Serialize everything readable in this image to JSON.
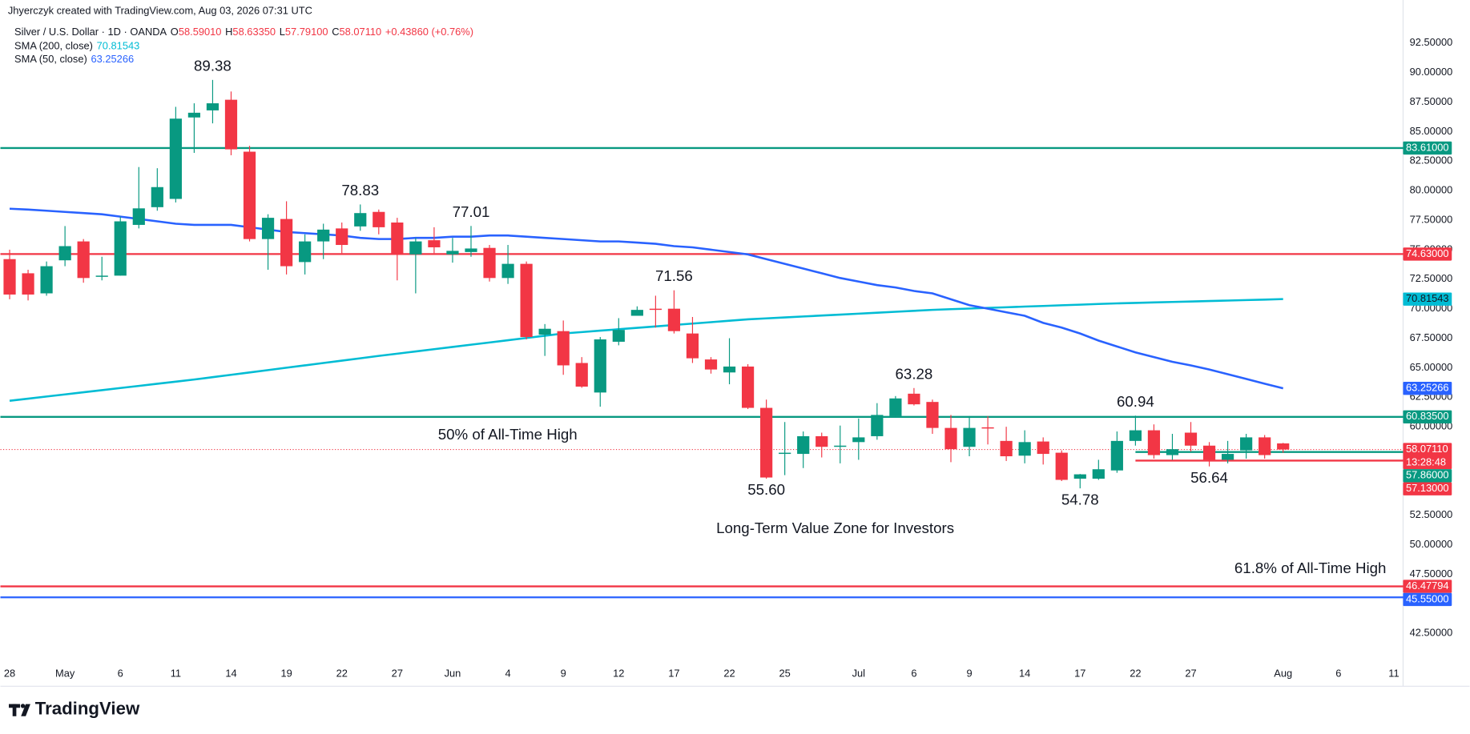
{
  "header": {
    "credit": "Jhyerczyk created with TradingView.com, Aug 03, 2026 07:31 UTC",
    "symbol": "Silver / U.S. Dollar · 1D · OANDA",
    "legend": [
      {
        "key": "O",
        "label": "58.59010"
      },
      {
        "key": "H",
        "label": "58.63350"
      },
      {
        "key": "L",
        "label": "57.79100"
      },
      {
        "key": "C",
        "label": "58.07110"
      }
    ],
    "change": "+0.43860 (+0.76%)"
  },
  "brand": "TradingView",
  "chart_data": {
    "type": "candlestick",
    "categories": [
      "28",
      null,
      null,
      "May",
      null,
      null,
      "6",
      null,
      null,
      "11",
      null,
      null,
      "14",
      null,
      null,
      "19",
      null,
      null,
      "22",
      null,
      null,
      "27",
      null,
      null,
      "Jun",
      null,
      null,
      "4",
      null,
      null,
      "9",
      null,
      null,
      "12",
      null,
      null,
      "17",
      null,
      null,
      "22",
      null,
      null,
      "25",
      null,
      null,
      null,
      "Jul",
      null,
      null,
      "6",
      null,
      null,
      "9",
      null,
      null,
      "14",
      null,
      null,
      "17",
      null,
      null,
      "22",
      null,
      null,
      "27",
      null,
      null,
      null,
      null,
      "Aug",
      null,
      null,
      "6",
      null,
      null,
      "11"
    ],
    "open": [
      74.2,
      73.0,
      71.3,
      74.1,
      75.7,
      72.7,
      72.8,
      77.1,
      78.6,
      79.3,
      86.2,
      86.8,
      87.7,
      83.3,
      75.9,
      77.6,
      73.95,
      75.7,
      76.8,
      76.97,
      78.2,
      77.3,
      74.6,
      75.8,
      74.6,
      74.8,
      75.15,
      72.6,
      73.8,
      67.8,
      68.1,
      65.4,
      62.9,
      67.2,
      69.4,
      70.0,
      70.0,
      67.9,
      65.7,
      64.6,
      65.1,
      61.6,
      57.7,
      57.7,
      59.2,
      58.3,
      58.7,
      59.2,
      60.9,
      62.8,
      62.1,
      59.9,
      58.3,
      59.95,
      58.8,
      57.55,
      58.75,
      57.8,
      55.6,
      55.6,
      56.3,
      58.8,
      59.7,
      57.6,
      59.5,
      58.4,
      57.2,
      58.0,
      59.1,
      58.5901,
      null,
      null,
      null,
      null,
      null,
      null
    ],
    "high": [
      75.0,
      73.3,
      74.0,
      77.0,
      75.9,
      74.4,
      77.8,
      82.0,
      81.9,
      87.1,
      87.4,
      89.38,
      88.4,
      83.8,
      78.0,
      79.1,
      76.3,
      77.2,
      77.3,
      78.83,
      78.4,
      77.7,
      76.0,
      76.9,
      76.0,
      77.01,
      75.4,
      75.4,
      74.0,
      68.7,
      69.0,
      65.9,
      67.6,
      69.2,
      70.2,
      71.1,
      71.56,
      69.3,
      65.9,
      67.5,
      65.3,
      62.3,
      60.4,
      59.6,
      59.5,
      60.1,
      60.7,
      62.0,
      62.6,
      63.28,
      62.3,
      61.0,
      60.9,
      60.9,
      60.0,
      59.7,
      59.1,
      58.0,
      56.0,
      57.2,
      59.6,
      60.94,
      60.2,
      59.4,
      60.4,
      58.7,
      58.8,
      59.4,
      59.3,
      58.6335,
      null,
      null,
      null,
      null,
      null,
      null
    ],
    "low": [
      70.8,
      70.7,
      71.1,
      73.6,
      72.2,
      72.4,
      72.8,
      76.8,
      78.3,
      79.0,
      83.2,
      85.7,
      83.0,
      75.7,
      73.3,
      72.9,
      72.9,
      74.2,
      74.7,
      76.6,
      76.3,
      72.4,
      71.3,
      74.7,
      73.9,
      74.4,
      72.3,
      72.1,
      67.4,
      66.0,
      64.4,
      63.3,
      61.7,
      66.9,
      69.4,
      68.4,
      67.9,
      65.4,
      64.5,
      63.6,
      61.5,
      55.6,
      55.9,
      56.5,
      57.4,
      56.9,
      57.2,
      58.9,
      60.8,
      61.8,
      59.4,
      57.0,
      57.5,
      58.5,
      57.1,
      56.9,
      56.8,
      55.4,
      54.78,
      55.5,
      56.1,
      58.4,
      57.3,
      57.2,
      57.9,
      56.64,
      56.9,
      57.3,
      57.3,
      57.791,
      null,
      null,
      null,
      null,
      null,
      null
    ],
    "close": [
      71.2,
      71.2,
      73.6,
      75.3,
      72.6,
      72.8,
      77.4,
      78.5,
      80.3,
      86.1,
      86.6,
      87.4,
      83.5,
      75.9,
      77.7,
      73.6,
      75.7,
      76.7,
      75.4,
      78.1,
      76.9,
      74.6,
      75.7,
      75.2,
      74.9,
      75.1,
      72.6,
      73.8,
      67.6,
      68.3,
      65.2,
      63.4,
      67.4,
      68.2,
      69.9,
      69.9,
      68.1,
      65.8,
      64.85,
      65.1,
      61.6,
      55.7,
      57.8,
      59.2,
      58.3,
      58.4,
      59.1,
      61.0,
      62.4,
      61.9,
      59.9,
      58.1,
      59.9,
      59.85,
      57.5,
      58.7,
      57.7,
      55.5,
      55.97,
      56.4,
      58.8,
      59.7,
      57.6,
      58.1,
      58.4,
      57.2,
      57.7,
      59.1,
      57.6,
      58.0711,
      null,
      null,
      null,
      null,
      null,
      null
    ],
    "up_color": "#089981",
    "down_color": "#f23645",
    "series": [
      {
        "name": "SMA (200, close)",
        "color": "#00bcd4",
        "values": [
          62.2,
          62.38,
          62.56,
          62.74,
          62.92,
          63.1,
          63.28,
          63.46,
          63.64,
          63.82,
          64.0,
          64.2,
          64.4,
          64.6,
          64.8,
          65.0,
          65.2,
          65.4,
          65.6,
          65.8,
          66.0,
          66.19,
          66.38,
          66.57,
          66.76,
          66.95,
          67.14,
          67.33,
          67.52,
          67.71,
          67.9,
          68.02,
          68.14,
          68.26,
          68.38,
          68.5,
          68.62,
          68.74,
          68.86,
          68.98,
          69.1,
          69.18,
          69.26,
          69.34,
          69.42,
          69.5,
          69.58,
          69.66,
          69.74,
          69.82,
          69.9,
          69.96,
          70.01,
          70.07,
          70.12,
          70.18,
          70.23,
          70.29,
          70.34,
          70.4,
          70.45,
          70.49,
          70.53,
          70.57,
          70.61,
          70.65,
          70.69,
          70.73,
          70.77,
          70.81543,
          null,
          null,
          null,
          null,
          null,
          null
        ]
      },
      {
        "name": "SMA (50, close)",
        "color": "#2962ff",
        "values": [
          78.47,
          78.4,
          78.3,
          78.2,
          78.1,
          78.0,
          77.8,
          77.6,
          77.4,
          77.2,
          77.1,
          77.1,
          77.1,
          76.9,
          76.7,
          76.5,
          76.4,
          76.3,
          76.2,
          76.0,
          75.9,
          75.9,
          76.0,
          76.0,
          76.1,
          76.1,
          76.2,
          76.2,
          76.1,
          76.0,
          75.9,
          75.8,
          75.7,
          75.7,
          75.6,
          75.5,
          75.3,
          75.2,
          75.0,
          74.8,
          74.6,
          74.2,
          73.8,
          73.4,
          73.0,
          72.6,
          72.3,
          72.0,
          71.8,
          71.5,
          71.3,
          70.8,
          70.3,
          70.0,
          69.7,
          69.4,
          68.8,
          68.4,
          67.9,
          67.3,
          66.8,
          66.3,
          65.9,
          65.5,
          65.2,
          64.85,
          64.45,
          64.05,
          63.65,
          63.25266,
          null,
          null,
          null,
          null,
          null,
          null
        ]
      }
    ],
    "levels": [
      {
        "value": 83.61,
        "label": "83.61000",
        "color": "#089981"
      },
      {
        "value": 74.63,
        "label": "74.63000",
        "color": "#f23645"
      },
      {
        "value": 60.835,
        "label": "60.83500",
        "color": "#089981"
      },
      {
        "value": 57.86,
        "label": "57.86000",
        "color": "#089981",
        "start": 61
      },
      {
        "value": 57.13,
        "label": "57.13000",
        "color": "#f23645",
        "start": 61
      },
      {
        "value": 46.47794,
        "label": "46.47794",
        "color": "#f23645"
      },
      {
        "value": 45.55,
        "label": "45.55000",
        "color": "#2962ff"
      }
    ],
    "last_price": {
      "value": 58.0711,
      "label": "58.07110",
      "countdown": "13:28:48",
      "color": "#f23645"
    },
    "annotations": [
      {
        "text": "89.38",
        "value": 89.38
      },
      {
        "text": "78.83",
        "value": 78.83
      },
      {
        "text": "77.01",
        "value": 77.01
      },
      {
        "text": "71.56",
        "value": 71.56
      },
      {
        "text": "63.28",
        "value": 63.28
      },
      {
        "text": "60.94",
        "value": 60.94
      },
      {
        "text": "55.60",
        "value": 55.6
      },
      {
        "text": "54.78",
        "value": 54.78
      },
      {
        "text": "56.64",
        "value": 56.64
      }
    ],
    "notes": [
      "50% of All-Time High",
      "Long-Term Value Zone for Investors",
      "61.8% of All-Time High"
    ],
    "ylim": [
      40,
      96.15
    ],
    "yticks": [
      {
        "value": 92.5,
        "label": "92.50000"
      },
      {
        "value": 90,
        "label": "90.00000"
      },
      {
        "value": 87.5,
        "label": "87.50000"
      },
      {
        "value": 85,
        "label": "85.00000"
      },
      {
        "value": 82.5,
        "label": "82.50000"
      },
      {
        "value": 80,
        "label": "80.00000"
      },
      {
        "value": 77.5,
        "label": "77.50000"
      },
      {
        "value": 75,
        "label": "75.00000"
      },
      {
        "value": 72.5,
        "label": "72.50000"
      },
      {
        "value": 70,
        "label": "70.00000"
      },
      {
        "value": 67.5,
        "label": "67.50000"
      },
      {
        "value": 65,
        "label": "65.00000"
      },
      {
        "value": 62.5,
        "label": "62.50000"
      },
      {
        "value": 60,
        "label": "60.00000"
      },
      {
        "value": 52.5,
        "label": "52.50000"
      },
      {
        "value": 50,
        "label": "50.00000"
      },
      {
        "value": 47.5,
        "label": "47.50000"
      },
      {
        "value": 42.5,
        "label": "42.50000"
      }
    ],
    "grid": false
  }
}
